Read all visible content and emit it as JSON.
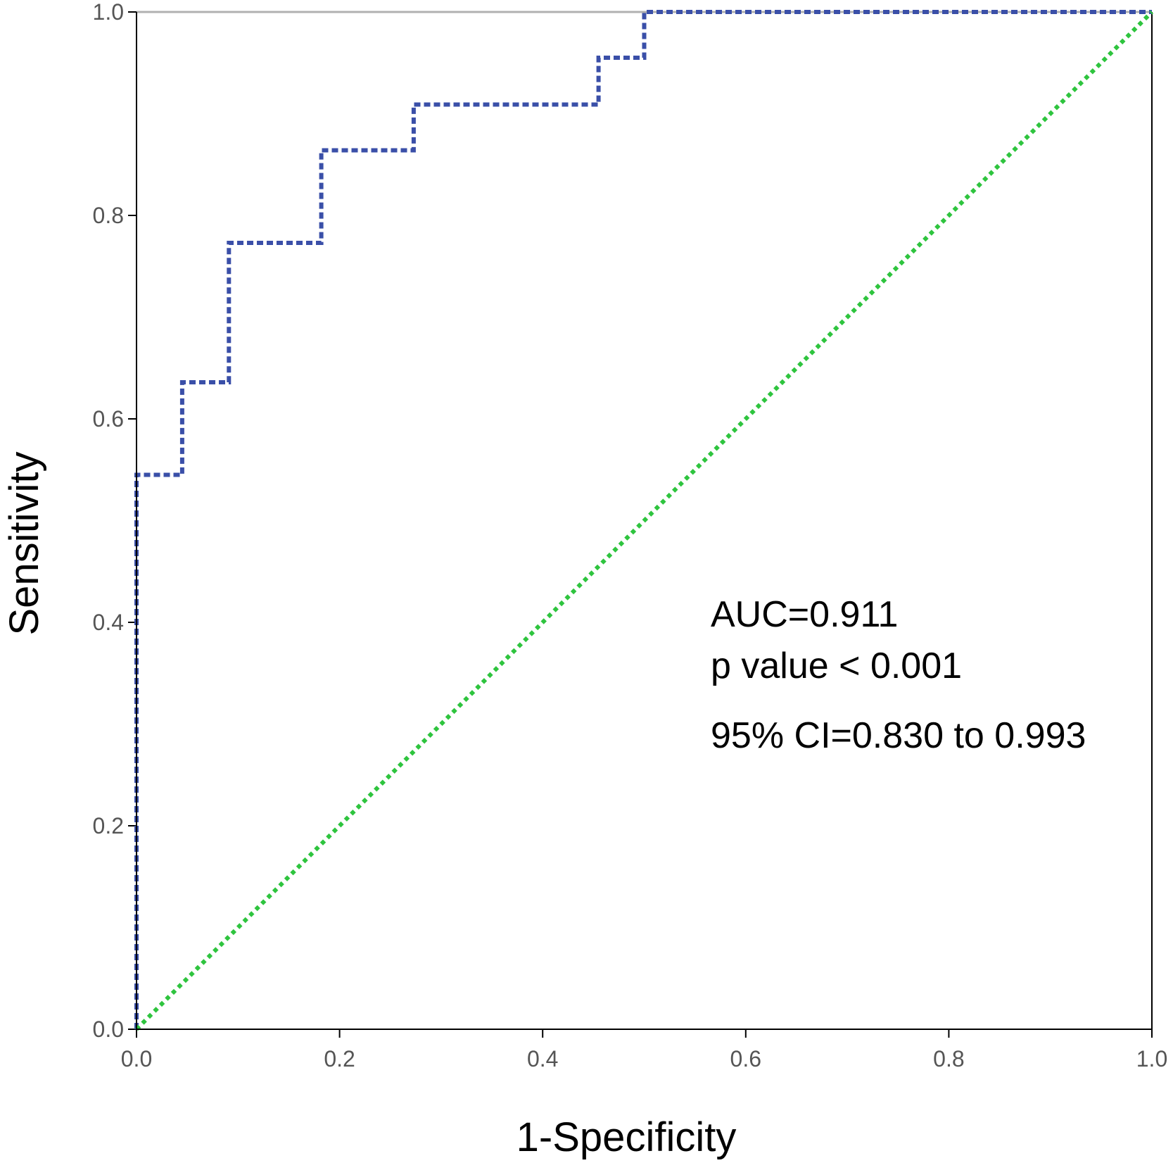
{
  "chart_data": {
    "type": "line",
    "title": "",
    "xlabel": "1-Specificity",
    "ylabel": "Sensitivity",
    "xlim": [
      0,
      1
    ],
    "ylim": [
      0,
      1
    ],
    "grid": false,
    "x_ticks": [
      "0.0",
      "0.2",
      "0.4",
      "0.6",
      "0.8",
      "1.0"
    ],
    "y_ticks": [
      "0.0",
      "0.2",
      "0.4",
      "0.6",
      "0.8",
      "1.0"
    ],
    "series": [
      {
        "name": "ROC curve",
        "color": "#3a4fa8",
        "style": "dotted",
        "step": true,
        "x": [
          0.0,
          0.0,
          0.045,
          0.045,
          0.091,
          0.091,
          0.182,
          0.182,
          0.273,
          0.273,
          0.455,
          0.455,
          0.5,
          0.5,
          1.0
        ],
        "y": [
          0.0,
          0.545,
          0.545,
          0.636,
          0.636,
          0.773,
          0.773,
          0.864,
          0.864,
          0.909,
          0.909,
          0.955,
          0.955,
          1.0,
          1.0
        ]
      },
      {
        "name": "Reference line",
        "color": "#2ec43e",
        "style": "dotted",
        "x": [
          0,
          1
        ],
        "y": [
          0,
          1
        ]
      }
    ],
    "annotations": [
      "AUC=0.911",
      "p value < 0.001",
      "95% CI=0.830 to 0.993"
    ]
  }
}
